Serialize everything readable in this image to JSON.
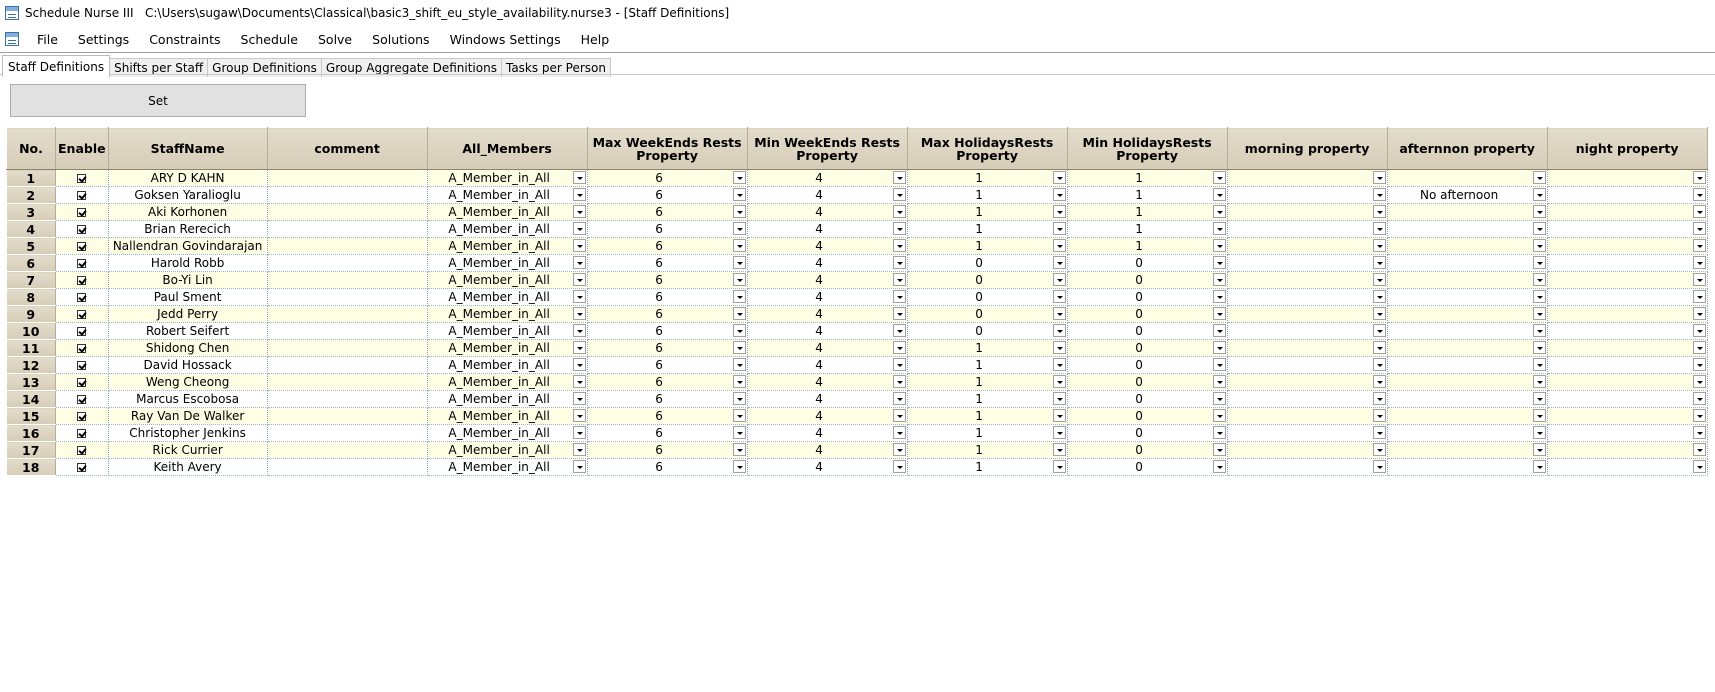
{
  "window": {
    "app_name": "Schedule Nurse III",
    "file_path": "C:\\Users\\sugaw\\Documents\\Classical\\basic3_shift_eu_style_availability.nurse3 - [Staff Definitions]"
  },
  "menu": [
    "File",
    "Settings",
    "Constraints",
    "Schedule",
    "Solve",
    "Solutions",
    "Windows Settings",
    "Help"
  ],
  "tabs": [
    {
      "label": "Staff Definitions",
      "active": true
    },
    {
      "label": "Shifts per Staff",
      "active": false
    },
    {
      "label": "Group Definitions",
      "active": false
    },
    {
      "label": "Group Aggregate Definitions",
      "active": false
    },
    {
      "label": "Tasks per Person",
      "active": false
    }
  ],
  "set_button_label": "Set",
  "columns": {
    "no": "No.",
    "enable": "Enable",
    "staff_name": "StaffName",
    "comment": "comment",
    "all_members": "All_Members",
    "max_weekends": [
      "Max WeekEnds Rests",
      "Property"
    ],
    "min_weekends": [
      "Min WeekEnds Rests",
      "Property"
    ],
    "max_holidays": [
      "Max HolidaysRests",
      "Property"
    ],
    "min_holidays": [
      "Min HolidaysRests",
      "Property"
    ],
    "morning": "morning property",
    "afternoon": "afternnon property",
    "night": "night property"
  },
  "rows": [
    {
      "no": "1",
      "enabled": true,
      "name": "ARY D KAHN",
      "comment": "",
      "group": "A_Member_in_All",
      "max_we": "6",
      "min_we": "4",
      "max_hol": "1",
      "min_hol": "1",
      "morning": "",
      "afternoon": "",
      "night": ""
    },
    {
      "no": "2",
      "enabled": true,
      "name": "Goksen Yaralioglu",
      "comment": "",
      "group": "A_Member_in_All",
      "max_we": "6",
      "min_we": "4",
      "max_hol": "1",
      "min_hol": "1",
      "morning": "",
      "afternoon": "No afternoon",
      "night": ""
    },
    {
      "no": "3",
      "enabled": true,
      "name": "Aki Korhonen",
      "comment": "",
      "group": "A_Member_in_All",
      "max_we": "6",
      "min_we": "4",
      "max_hol": "1",
      "min_hol": "1",
      "morning": "",
      "afternoon": "",
      "night": ""
    },
    {
      "no": "4",
      "enabled": true,
      "name": "Brian Rerecich",
      "comment": "",
      "group": "A_Member_in_All",
      "max_we": "6",
      "min_we": "4",
      "max_hol": "1",
      "min_hol": "1",
      "morning": "",
      "afternoon": "",
      "night": ""
    },
    {
      "no": "5",
      "enabled": true,
      "name": "Nallendran Govindarajan",
      "comment": "",
      "group": "A_Member_in_All",
      "max_we": "6",
      "min_we": "4",
      "max_hol": "1",
      "min_hol": "1",
      "morning": "",
      "afternoon": "",
      "night": ""
    },
    {
      "no": "6",
      "enabled": true,
      "name": "Harold Robb",
      "comment": "",
      "group": "A_Member_in_All",
      "max_we": "6",
      "min_we": "4",
      "max_hol": "0",
      "min_hol": "0",
      "morning": "",
      "afternoon": "",
      "night": ""
    },
    {
      "no": "7",
      "enabled": true,
      "name": "Bo-Yi Lin",
      "comment": "",
      "group": "A_Member_in_All",
      "max_we": "6",
      "min_we": "4",
      "max_hol": "0",
      "min_hol": "0",
      "morning": "",
      "afternoon": "",
      "night": ""
    },
    {
      "no": "8",
      "enabled": true,
      "name": "Paul Sment",
      "comment": "",
      "group": "A_Member_in_All",
      "max_we": "6",
      "min_we": "4",
      "max_hol": "0",
      "min_hol": "0",
      "morning": "",
      "afternoon": "",
      "night": ""
    },
    {
      "no": "9",
      "enabled": true,
      "name": "Jedd Perry",
      "comment": "",
      "group": "A_Member_in_All",
      "max_we": "6",
      "min_we": "4",
      "max_hol": "0",
      "min_hol": "0",
      "morning": "",
      "afternoon": "",
      "night": ""
    },
    {
      "no": "10",
      "enabled": true,
      "name": "Robert Seifert",
      "comment": "",
      "group": "A_Member_in_All",
      "max_we": "6",
      "min_we": "4",
      "max_hol": "0",
      "min_hol": "0",
      "morning": "",
      "afternoon": "",
      "night": ""
    },
    {
      "no": "11",
      "enabled": true,
      "name": "Shidong Chen",
      "comment": "",
      "group": "A_Member_in_All",
      "max_we": "6",
      "min_we": "4",
      "max_hol": "1",
      "min_hol": "0",
      "morning": "",
      "afternoon": "",
      "night": ""
    },
    {
      "no": "12",
      "enabled": true,
      "name": "David Hossack",
      "comment": "",
      "group": "A_Member_in_All",
      "max_we": "6",
      "min_we": "4",
      "max_hol": "1",
      "min_hol": "0",
      "morning": "",
      "afternoon": "",
      "night": ""
    },
    {
      "no": "13",
      "enabled": true,
      "name": "Weng Cheong",
      "comment": "",
      "group": "A_Member_in_All",
      "max_we": "6",
      "min_we": "4",
      "max_hol": "1",
      "min_hol": "0",
      "morning": "",
      "afternoon": "",
      "night": ""
    },
    {
      "no": "14",
      "enabled": true,
      "name": "Marcus Escobosa",
      "comment": "",
      "group": "A_Member_in_All",
      "max_we": "6",
      "min_we": "4",
      "max_hol": "1",
      "min_hol": "0",
      "morning": "",
      "afternoon": "",
      "night": ""
    },
    {
      "no": "15",
      "enabled": true,
      "name": "Ray Van De Walker",
      "comment": "",
      "group": "A_Member_in_All",
      "max_we": "6",
      "min_we": "4",
      "max_hol": "1",
      "min_hol": "0",
      "morning": "",
      "afternoon": "",
      "night": ""
    },
    {
      "no": "16",
      "enabled": true,
      "name": "Christopher Jenkins",
      "comment": "",
      "group": "A_Member_in_All",
      "max_we": "6",
      "min_we": "4",
      "max_hol": "1",
      "min_hol": "0",
      "morning": "",
      "afternoon": "",
      "night": ""
    },
    {
      "no": "17",
      "enabled": true,
      "name": "Rick Currier",
      "comment": "",
      "group": "A_Member_in_All",
      "max_we": "6",
      "min_we": "4",
      "max_hol": "1",
      "min_hol": "0",
      "morning": "",
      "afternoon": "",
      "night": ""
    },
    {
      "no": "18",
      "enabled": true,
      "name": "Keith Avery",
      "comment": "",
      "group": "A_Member_in_All",
      "max_we": "6",
      "min_we": "4",
      "max_hol": "1",
      "min_hol": "0",
      "morning": "",
      "afternoon": "",
      "night": ""
    }
  ]
}
